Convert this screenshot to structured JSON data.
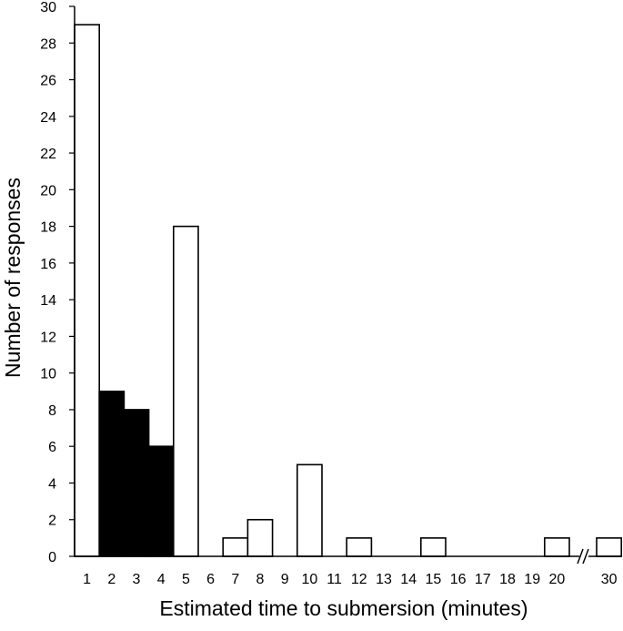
{
  "chart_data": {
    "type": "bar",
    "title": "",
    "xlabel": "Estimated time to submersion (minutes)",
    "ylabel": "Number of responses",
    "ylim": [
      0,
      30
    ],
    "yticks": [
      0,
      2,
      4,
      6,
      8,
      10,
      12,
      14,
      16,
      18,
      20,
      22,
      24,
      26,
      28,
      30
    ],
    "categories": [
      "1",
      "2",
      "3",
      "4",
      "5",
      "6",
      "7",
      "8",
      "9",
      "10",
      "11",
      "12",
      "13",
      "14",
      "15",
      "16",
      "17",
      "18",
      "19",
      "20",
      "30"
    ],
    "values": [
      29,
      9,
      8,
      6,
      18,
      0,
      1,
      2,
      0,
      5,
      0,
      1,
      0,
      0,
      1,
      0,
      0,
      0,
      0,
      1,
      1
    ],
    "highlighted_categories": [
      "2",
      "3",
      "4"
    ],
    "axis_break_between": [
      "20",
      "30"
    ],
    "grid": false,
    "legend": "none",
    "colors": {
      "bar_fill": "#ffffff",
      "highlight_fill": "#000000",
      "stroke": "#000000"
    }
  }
}
